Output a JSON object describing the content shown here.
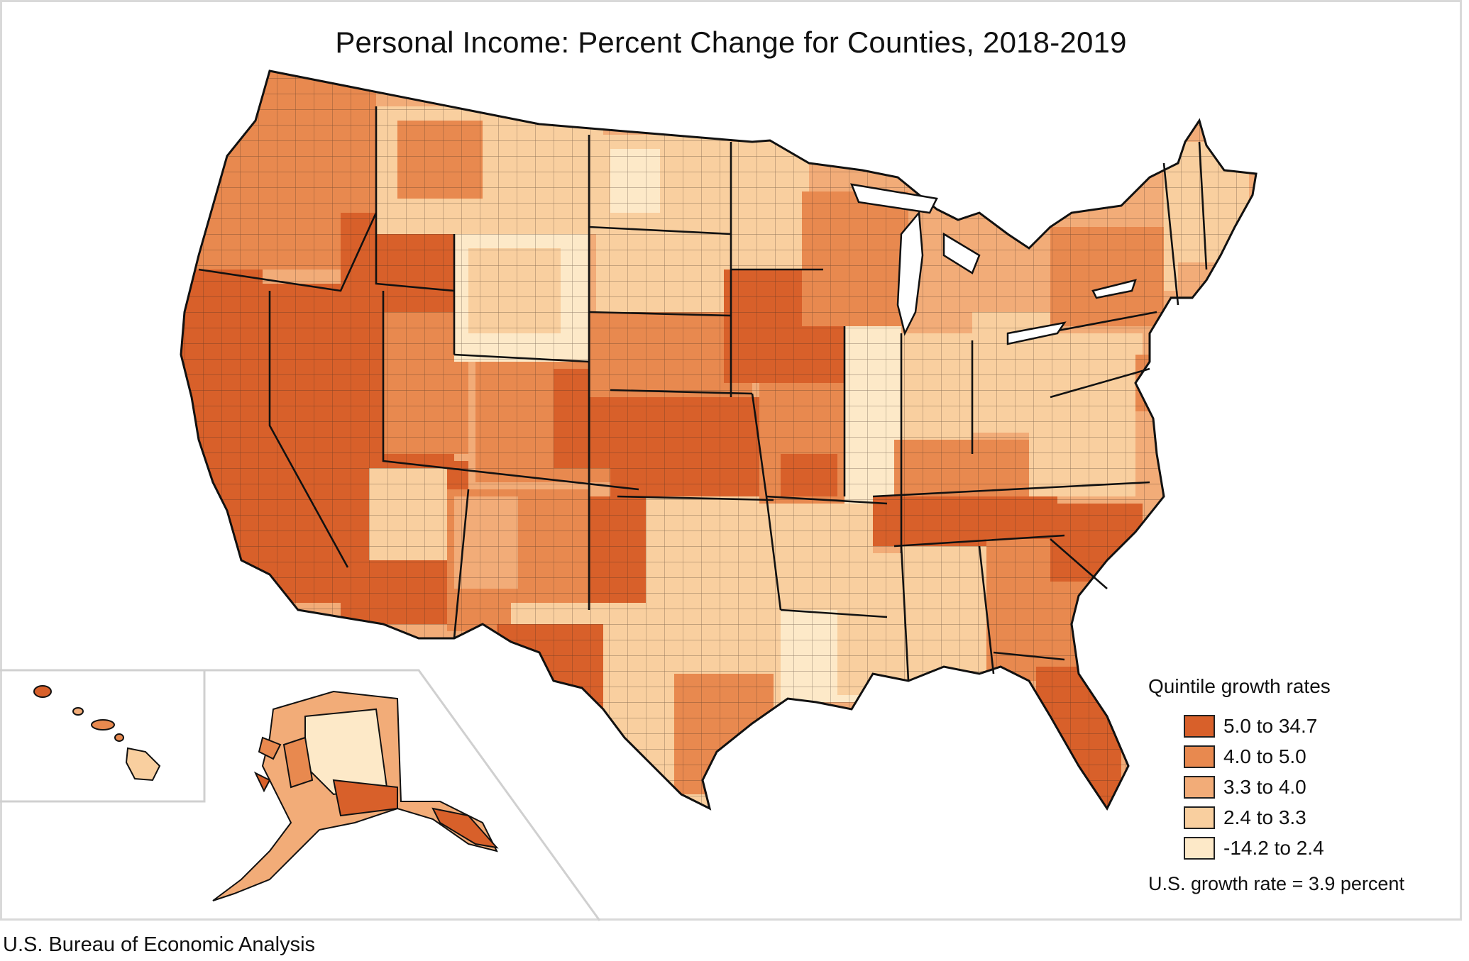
{
  "title": "Personal Income: Percent Change for Counties, 2018-2019",
  "source": "U.S. Bureau of Economic Analysis",
  "legend": {
    "title": "Quintile growth rates",
    "items": [
      {
        "label": "5.0 to 34.7",
        "color": "#d8602a"
      },
      {
        "label": "4.0 to 5.0",
        "color": "#e8894f"
      },
      {
        "label": "3.3 to 4.0",
        "color": "#f2ac78"
      },
      {
        "label": "2.4 to 3.3",
        "color": "#f9cf9f"
      },
      {
        "label": "-14.2 to 2.4",
        "color": "#fde9c8"
      }
    ],
    "note": "U.S. growth rate = 3.9 percent"
  },
  "map": {
    "type": "choropleth",
    "region": "United States counties",
    "insets": [
      "Hawaii",
      "Alaska"
    ],
    "outline_color": "#1a1a1a"
  }
}
